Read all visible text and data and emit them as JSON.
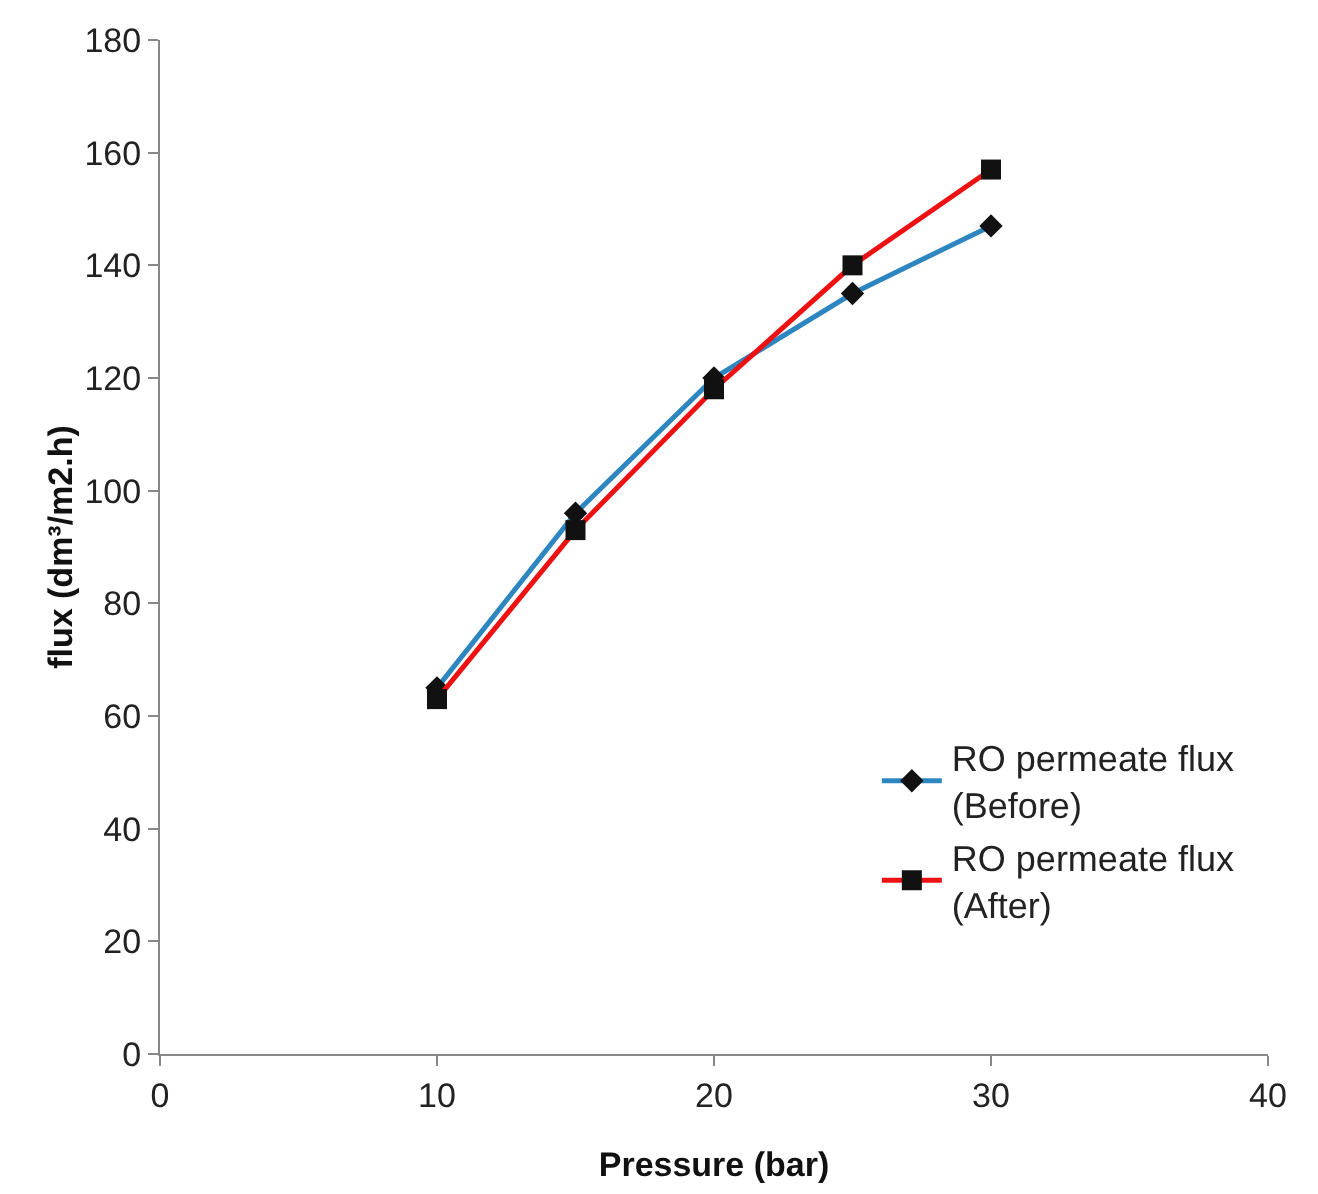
{
  "chart_data": {
    "type": "line",
    "xlabel": "Pressure (bar)",
    "ylabel": "flux (dm³/m2.h)",
    "x": [
      10,
      15,
      20,
      25,
      30
    ],
    "series": [
      {
        "name": "RO permeate flux\n(Before)",
        "color": "#2e86c1",
        "marker": "diamond",
        "values": [
          65,
          96,
          120,
          135,
          147
        ]
      },
      {
        "name": "RO permeate flux\n(After)",
        "color": "#ee1111",
        "marker": "square",
        "values": [
          63,
          93,
          118,
          140,
          157
        ]
      }
    ],
    "xlim": [
      0,
      40
    ],
    "xticks": [
      0,
      10,
      20,
      30,
      40
    ],
    "ylim": [
      0,
      180
    ],
    "yticks": [
      0,
      20,
      40,
      60,
      80,
      100,
      120,
      140,
      160,
      180
    ],
    "grid": false,
    "legend": "right",
    "line_style": "solid"
  }
}
